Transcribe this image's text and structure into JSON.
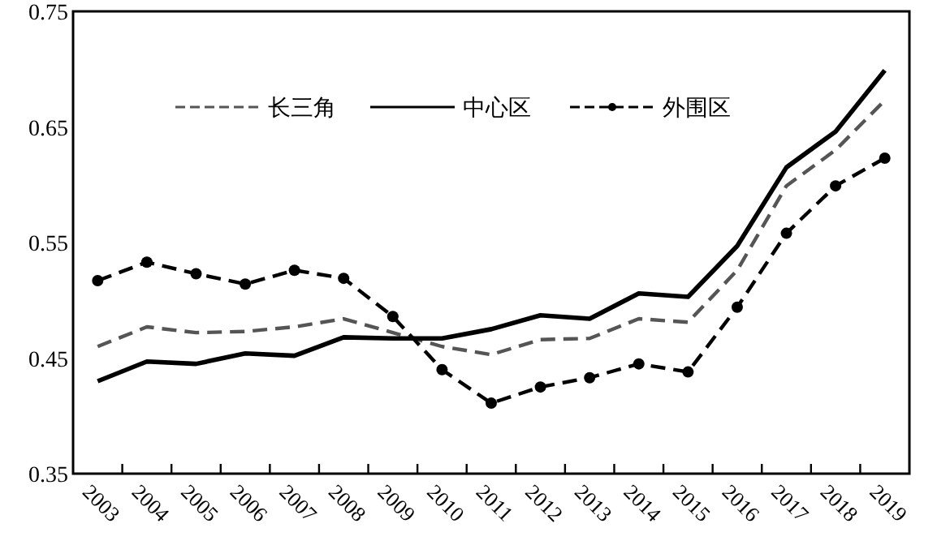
{
  "chart_data": {
    "type": "line",
    "categories": [
      "2003",
      "2004",
      "2005",
      "2006",
      "2007",
      "2008",
      "2009",
      "2010",
      "2011",
      "2012",
      "2013",
      "2014",
      "2015",
      "2016",
      "2017",
      "2018",
      "2019"
    ],
    "ylim": [
      0.35,
      0.75
    ],
    "yticks": [
      0.35,
      0.45,
      0.55,
      0.65,
      0.75
    ],
    "grid": false,
    "legend": "top",
    "series": [
      {
        "name": "长三角",
        "color": "#555555",
        "line_style": "dashed",
        "marker": "none",
        "values": [
          0.46,
          0.477,
          0.472,
          0.473,
          0.477,
          0.484,
          0.472,
          0.46,
          0.453,
          0.466,
          0.467,
          0.484,
          0.481,
          0.526,
          0.599,
          0.63,
          0.673
        ]
      },
      {
        "name": "中心区",
        "color": "#000000",
        "line_style": "solid",
        "marker": "none",
        "values": [
          0.43,
          0.447,
          0.445,
          0.454,
          0.452,
          0.468,
          0.467,
          0.467,
          0.475,
          0.487,
          0.484,
          0.506,
          0.503,
          0.547,
          0.615,
          0.646,
          0.699
        ]
      },
      {
        "name": "外围区",
        "color": "#000000",
        "line_style": "dashed",
        "marker": "circle",
        "values": [
          0.517,
          0.533,
          0.523,
          0.514,
          0.526,
          0.519,
          0.486,
          0.44,
          0.411,
          0.425,
          0.433,
          0.445,
          0.438,
          0.494,
          0.558,
          0.599,
          0.623
        ]
      }
    ]
  }
}
